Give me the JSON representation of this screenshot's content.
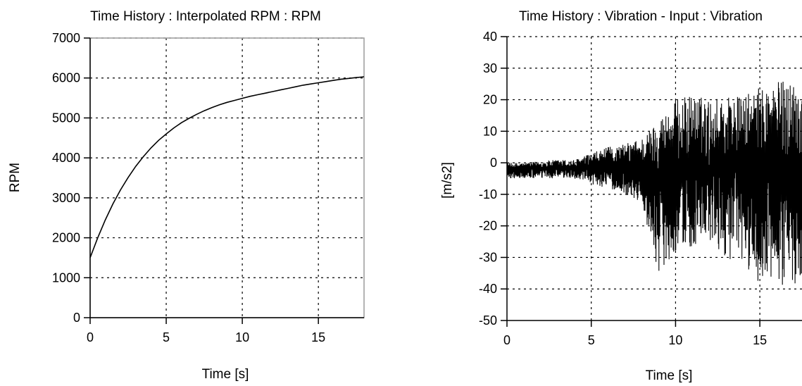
{
  "chart_data": [
    {
      "type": "line",
      "title": "Time History : Interpolated RPM : RPM",
      "xlabel": "Time [s]",
      "ylabel": "RPM",
      "xlim": [
        0,
        18
      ],
      "ylim": [
        0,
        7000
      ],
      "xticks": [
        0,
        5,
        10,
        15
      ],
      "xtick_labels": [
        "0",
        "5",
        "10",
        "15"
      ],
      "yticks": [
        0,
        1000,
        2000,
        3000,
        4000,
        5000,
        6000,
        7000
      ],
      "ytick_labels": [
        "0",
        "1000",
        "2000",
        "3000",
        "4000",
        "5000",
        "6000",
        "7000"
      ],
      "grid": true,
      "series": [
        {
          "color": "#000000",
          "x": [
            0,
            0.5,
            1,
            1.5,
            2,
            2.5,
            3,
            3.5,
            4,
            4.5,
            5,
            5.5,
            6,
            6.5,
            7,
            7.5,
            8,
            8.5,
            9,
            9.5,
            10,
            10.5,
            11,
            11.5,
            12,
            12.5,
            13,
            13.5,
            14,
            14.5,
            15,
            15.5,
            16,
            16.5,
            17,
            17.5,
            18
          ],
          "y": [
            1500,
            2000,
            2450,
            2850,
            3200,
            3510,
            3790,
            4030,
            4250,
            4440,
            4600,
            4750,
            4880,
            4990,
            5090,
            5180,
            5260,
            5330,
            5390,
            5440,
            5490,
            5540,
            5580,
            5620,
            5660,
            5700,
            5740,
            5780,
            5820,
            5850,
            5880,
            5910,
            5940,
            5970,
            5990,
            6010,
            6030
          ]
        }
      ]
    },
    {
      "type": "line",
      "title": "Time History : Vibration - Input : Vibration",
      "xlabel": "Time [s]",
      "ylabel": "[m/s2]",
      "xlim": [
        0,
        17.5
      ],
      "ylim": [
        -50,
        40
      ],
      "xticks": [
        0,
        5,
        10,
        15
      ],
      "xtick_labels": [
        "0",
        "5",
        "10",
        "15"
      ],
      "yticks": [
        -50,
        -40,
        -30,
        -20,
        -10,
        0,
        10,
        20,
        30,
        40
      ],
      "ytick_labels": [
        "-50",
        "-40",
        "-30",
        "-20",
        "-10",
        "0",
        "10",
        "20",
        "30",
        "40"
      ],
      "grid": true,
      "series": [
        {
          "color": "#000000",
          "envelope_x": [
            0,
            1,
            2,
            3,
            4,
            5,
            6,
            7,
            8,
            9,
            10,
            11,
            12,
            13,
            14,
            15,
            16,
            17,
            17.5
          ],
          "envelope_max": [
            0,
            0,
            0.5,
            1,
            1,
            3,
            5,
            6,
            8,
            14,
            20,
            22,
            20,
            22,
            21,
            24,
            26,
            27,
            26
          ],
          "envelope_min": [
            -5,
            -5,
            -5,
            -5,
            -5,
            -7,
            -8,
            -10,
            -13,
            -35,
            -28,
            -27,
            -26,
            -30,
            -33,
            -38,
            -40,
            -39,
            -35
          ],
          "center": -2
        }
      ]
    }
  ]
}
